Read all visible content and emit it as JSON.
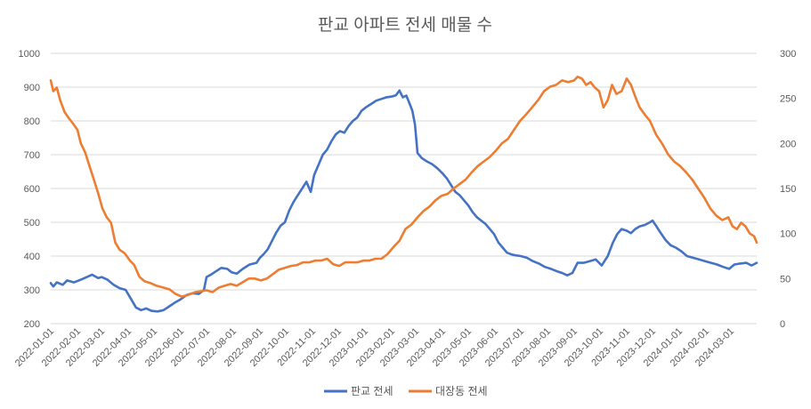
{
  "chart_data": {
    "type": "line",
    "title": "판교 아파트 전세 매물 수",
    "xlabel": "",
    "ylabel": "",
    "y2label": "",
    "ylim": [
      200,
      1000
    ],
    "y2lim": [
      0,
      300
    ],
    "yticks": [
      200,
      300,
      400,
      500,
      600,
      700,
      800,
      900,
      1000
    ],
    "y2ticks": [
      0,
      50,
      100,
      150,
      200,
      250,
      300
    ],
    "x_start": "2022-01-01",
    "x_end": "2024-03-31",
    "xticks": [
      "2022-01-01",
      "2022-02-01",
      "2022-03-01",
      "2022-04-01",
      "2022-05-01",
      "2022-06-01",
      "2022-07-01",
      "2022-08-01",
      "2022-09-01",
      "2022-10-01",
      "2022-11-01",
      "2022-12-01",
      "2023-01-01",
      "2023-02-01",
      "2023-03-01",
      "2023-04-01",
      "2023-05-01",
      "2023-06-01",
      "2023-07-01",
      "2023-08-01",
      "2023-09-01",
      "2023-10-01",
      "2023-11-01",
      "2023-12-01",
      "2024-01-01",
      "2024-02-01",
      "2024-03-01"
    ],
    "grid": true,
    "legend_position": "bottom",
    "series": [
      {
        "name": "판교 전세",
        "axis": "left",
        "color": "#4472C4",
        "points": [
          [
            "2022-01-01",
            320
          ],
          [
            "2022-01-04",
            310
          ],
          [
            "2022-01-08",
            322
          ],
          [
            "2022-01-15",
            315
          ],
          [
            "2022-01-20",
            328
          ],
          [
            "2022-01-28",
            322
          ],
          [
            "2022-02-05",
            330
          ],
          [
            "2022-02-12",
            338
          ],
          [
            "2022-02-18",
            345
          ],
          [
            "2022-02-25",
            335
          ],
          [
            "2022-03-01",
            338
          ],
          [
            "2022-03-08",
            330
          ],
          [
            "2022-03-15",
            315
          ],
          [
            "2022-03-22",
            305
          ],
          [
            "2022-03-29",
            300
          ],
          [
            "2022-04-05",
            270
          ],
          [
            "2022-04-10",
            248
          ],
          [
            "2022-04-16",
            240
          ],
          [
            "2022-04-22",
            245
          ],
          [
            "2022-04-28",
            238
          ],
          [
            "2022-05-05",
            236
          ],
          [
            "2022-05-12",
            240
          ],
          [
            "2022-05-18",
            250
          ],
          [
            "2022-05-25",
            262
          ],
          [
            "2022-06-01",
            272
          ],
          [
            "2022-06-08",
            285
          ],
          [
            "2022-06-15",
            290
          ],
          [
            "2022-06-22",
            288
          ],
          [
            "2022-06-28",
            300
          ],
          [
            "2022-07-01",
            338
          ],
          [
            "2022-07-06",
            345
          ],
          [
            "2022-07-12",
            355
          ],
          [
            "2022-07-18",
            365
          ],
          [
            "2022-07-25",
            362
          ],
          [
            "2022-07-30",
            352
          ],
          [
            "2022-08-05",
            348
          ],
          [
            "2022-08-12",
            362
          ],
          [
            "2022-08-20",
            375
          ],
          [
            "2022-08-28",
            380
          ],
          [
            "2022-09-01",
            395
          ],
          [
            "2022-09-05",
            405
          ],
          [
            "2022-09-10",
            420
          ],
          [
            "2022-09-15",
            445
          ],
          [
            "2022-09-20",
            470
          ],
          [
            "2022-09-25",
            490
          ],
          [
            "2022-09-30",
            500
          ],
          [
            "2022-10-05",
            535
          ],
          [
            "2022-10-10",
            560
          ],
          [
            "2022-10-15",
            580
          ],
          [
            "2022-10-20",
            600
          ],
          [
            "2022-10-25",
            620
          ],
          [
            "2022-10-30",
            590
          ],
          [
            "2022-11-03",
            640
          ],
          [
            "2022-11-08",
            670
          ],
          [
            "2022-11-13",
            700
          ],
          [
            "2022-11-18",
            715
          ],
          [
            "2022-11-23",
            740
          ],
          [
            "2022-11-28",
            760
          ],
          [
            "2022-12-03",
            770
          ],
          [
            "2022-12-08",
            765
          ],
          [
            "2022-12-13",
            785
          ],
          [
            "2022-12-18",
            800
          ],
          [
            "2022-12-23",
            810
          ],
          [
            "2022-12-28",
            830
          ],
          [
            "2023-01-02",
            840
          ],
          [
            "2023-01-08",
            850
          ],
          [
            "2023-01-14",
            860
          ],
          [
            "2023-01-20",
            865
          ],
          [
            "2023-01-26",
            870
          ],
          [
            "2023-02-01",
            872
          ],
          [
            "2023-02-06",
            876
          ],
          [
            "2023-02-10",
            890
          ],
          [
            "2023-02-14",
            870
          ],
          [
            "2023-02-18",
            875
          ],
          [
            "2023-02-22",
            850
          ],
          [
            "2023-02-25",
            830
          ],
          [
            "2023-02-28",
            790
          ],
          [
            "2023-03-03",
            705
          ],
          [
            "2023-03-08",
            690
          ],
          [
            "2023-03-14",
            680
          ],
          [
            "2023-03-20",
            672
          ],
          [
            "2023-03-26",
            660
          ],
          [
            "2023-04-01",
            645
          ],
          [
            "2023-04-06",
            630
          ],
          [
            "2023-04-11",
            610
          ],
          [
            "2023-04-16",
            590
          ],
          [
            "2023-04-21",
            580
          ],
          [
            "2023-04-26",
            565
          ],
          [
            "2023-05-01",
            550
          ],
          [
            "2023-05-06",
            530
          ],
          [
            "2023-05-11",
            515
          ],
          [
            "2023-05-16",
            505
          ],
          [
            "2023-05-21",
            495
          ],
          [
            "2023-05-26",
            480
          ],
          [
            "2023-05-31",
            465
          ],
          [
            "2023-06-05",
            440
          ],
          [
            "2023-06-10",
            425
          ],
          [
            "2023-06-15",
            410
          ],
          [
            "2023-06-20",
            405
          ],
          [
            "2023-06-25",
            402
          ],
          [
            "2023-07-01",
            400
          ],
          [
            "2023-07-08",
            395
          ],
          [
            "2023-07-15",
            385
          ],
          [
            "2023-07-22",
            378
          ],
          [
            "2023-07-29",
            368
          ],
          [
            "2023-08-05",
            362
          ],
          [
            "2023-08-12",
            355
          ],
          [
            "2023-08-18",
            350
          ],
          [
            "2023-08-24",
            343
          ],
          [
            "2023-08-30",
            350
          ],
          [
            "2023-09-05",
            380
          ],
          [
            "2023-09-12",
            380
          ],
          [
            "2023-09-19",
            385
          ],
          [
            "2023-09-26",
            390
          ],
          [
            "2023-10-03",
            372
          ],
          [
            "2023-10-10",
            400
          ],
          [
            "2023-10-16",
            440
          ],
          [
            "2023-10-21",
            465
          ],
          [
            "2023-10-26",
            480
          ],
          [
            "2023-11-01",
            475
          ],
          [
            "2023-11-06",
            468
          ],
          [
            "2023-11-11",
            480
          ],
          [
            "2023-11-16",
            488
          ],
          [
            "2023-11-22",
            492
          ],
          [
            "2023-11-28",
            500
          ],
          [
            "2023-12-01",
            505
          ],
          [
            "2023-12-05",
            490
          ],
          [
            "2023-12-10",
            470
          ],
          [
            "2023-12-16",
            448
          ],
          [
            "2023-12-22",
            432
          ],
          [
            "2023-12-28",
            425
          ],
          [
            "2024-01-03",
            415
          ],
          [
            "2024-01-10",
            400
          ],
          [
            "2024-01-17",
            395
          ],
          [
            "2024-01-24",
            390
          ],
          [
            "2024-01-31",
            385
          ],
          [
            "2024-02-07",
            380
          ],
          [
            "2024-02-14",
            375
          ],
          [
            "2024-02-21",
            368
          ],
          [
            "2024-02-28",
            362
          ],
          [
            "2024-03-05",
            375
          ],
          [
            "2024-03-12",
            378
          ],
          [
            "2024-03-19",
            380
          ],
          [
            "2024-03-25",
            372
          ],
          [
            "2024-03-31",
            380
          ]
        ]
      },
      {
        "name": "대장동 전세",
        "axis": "right",
        "color": "#ED7D31",
        "points": [
          [
            "2022-01-01",
            270
          ],
          [
            "2022-01-04",
            258
          ],
          [
            "2022-01-08",
            262
          ],
          [
            "2022-01-12",
            248
          ],
          [
            "2022-01-17",
            235
          ],
          [
            "2022-01-22",
            228
          ],
          [
            "2022-01-27",
            222
          ],
          [
            "2022-02-01",
            215
          ],
          [
            "2022-02-05",
            200
          ],
          [
            "2022-02-10",
            190
          ],
          [
            "2022-02-15",
            175
          ],
          [
            "2022-02-20",
            160
          ],
          [
            "2022-02-25",
            145
          ],
          [
            "2022-03-02",
            128
          ],
          [
            "2022-03-07",
            118
          ],
          [
            "2022-03-12",
            112
          ],
          [
            "2022-03-17",
            90
          ],
          [
            "2022-03-22",
            82
          ],
          [
            "2022-03-28",
            78
          ],
          [
            "2022-04-03",
            70
          ],
          [
            "2022-04-08",
            65
          ],
          [
            "2022-04-14",
            52
          ],
          [
            "2022-04-20",
            47
          ],
          [
            "2022-04-27",
            45
          ],
          [
            "2022-05-04",
            42
          ],
          [
            "2022-05-12",
            40
          ],
          [
            "2022-05-19",
            38
          ],
          [
            "2022-05-26",
            33
          ],
          [
            "2022-06-02",
            30
          ],
          [
            "2022-06-10",
            32
          ],
          [
            "2022-06-18",
            35
          ],
          [
            "2022-06-25",
            36
          ],
          [
            "2022-07-01",
            37
          ],
          [
            "2022-07-08",
            35
          ],
          [
            "2022-07-15",
            40
          ],
          [
            "2022-07-22",
            42
          ],
          [
            "2022-07-29",
            44
          ],
          [
            "2022-08-05",
            42
          ],
          [
            "2022-08-12",
            46
          ],
          [
            "2022-08-19",
            50
          ],
          [
            "2022-08-26",
            50
          ],
          [
            "2022-09-02",
            48
          ],
          [
            "2022-09-09",
            50
          ],
          [
            "2022-09-16",
            55
          ],
          [
            "2022-09-23",
            60
          ],
          [
            "2022-09-30",
            62
          ],
          [
            "2022-10-07",
            64
          ],
          [
            "2022-10-14",
            65
          ],
          [
            "2022-10-21",
            68
          ],
          [
            "2022-10-28",
            68
          ],
          [
            "2022-11-04",
            70
          ],
          [
            "2022-11-11",
            70
          ],
          [
            "2022-11-18",
            72
          ],
          [
            "2022-11-25",
            66
          ],
          [
            "2022-12-02",
            64
          ],
          [
            "2022-12-09",
            68
          ],
          [
            "2022-12-16",
            68
          ],
          [
            "2022-12-23",
            68
          ],
          [
            "2022-12-30",
            70
          ],
          [
            "2023-01-06",
            70
          ],
          [
            "2023-01-13",
            72
          ],
          [
            "2023-01-20",
            72
          ],
          [
            "2023-01-27",
            77
          ],
          [
            "2023-02-03",
            85
          ],
          [
            "2023-02-10",
            92
          ],
          [
            "2023-02-17",
            105
          ],
          [
            "2023-02-24",
            110
          ],
          [
            "2023-03-03",
            118
          ],
          [
            "2023-03-10",
            125
          ],
          [
            "2023-03-17",
            130
          ],
          [
            "2023-03-24",
            137
          ],
          [
            "2023-03-31",
            142
          ],
          [
            "2023-04-07",
            144
          ],
          [
            "2023-04-14",
            150
          ],
          [
            "2023-04-21",
            155
          ],
          [
            "2023-04-28",
            160
          ],
          [
            "2023-05-05",
            168
          ],
          [
            "2023-05-12",
            175
          ],
          [
            "2023-05-19",
            180
          ],
          [
            "2023-05-26",
            185
          ],
          [
            "2023-06-02",
            192
          ],
          [
            "2023-06-09",
            200
          ],
          [
            "2023-06-16",
            205
          ],
          [
            "2023-06-23",
            215
          ],
          [
            "2023-06-30",
            225
          ],
          [
            "2023-07-07",
            232
          ],
          [
            "2023-07-14",
            240
          ],
          [
            "2023-07-21",
            248
          ],
          [
            "2023-07-28",
            258
          ],
          [
            "2023-08-04",
            263
          ],
          [
            "2023-08-11",
            265
          ],
          [
            "2023-08-18",
            270
          ],
          [
            "2023-08-25",
            268
          ],
          [
            "2023-09-01",
            270
          ],
          [
            "2023-09-05",
            274
          ],
          [
            "2023-09-10",
            272
          ],
          [
            "2023-09-15",
            265
          ],
          [
            "2023-09-20",
            268
          ],
          [
            "2023-09-25",
            262
          ],
          [
            "2023-09-30",
            258
          ],
          [
            "2023-10-05",
            240
          ],
          [
            "2023-10-10",
            248
          ],
          [
            "2023-10-15",
            265
          ],
          [
            "2023-10-20",
            255
          ],
          [
            "2023-10-26",
            258
          ],
          [
            "2023-11-01",
            272
          ],
          [
            "2023-11-06",
            265
          ],
          [
            "2023-11-11",
            252
          ],
          [
            "2023-11-16",
            240
          ],
          [
            "2023-11-22",
            232
          ],
          [
            "2023-11-28",
            225
          ],
          [
            "2023-12-05",
            210
          ],
          [
            "2023-12-12",
            200
          ],
          [
            "2023-12-19",
            188
          ],
          [
            "2023-12-26",
            180
          ],
          [
            "2024-01-02",
            175
          ],
          [
            "2024-01-09",
            168
          ],
          [
            "2024-01-16",
            160
          ],
          [
            "2024-01-23",
            150
          ],
          [
            "2024-01-30",
            140
          ],
          [
            "2024-02-06",
            128
          ],
          [
            "2024-02-13",
            120
          ],
          [
            "2024-02-20",
            115
          ],
          [
            "2024-02-27",
            118
          ],
          [
            "2024-03-03",
            108
          ],
          [
            "2024-03-08",
            105
          ],
          [
            "2024-03-13",
            112
          ],
          [
            "2024-03-18",
            108
          ],
          [
            "2024-03-23",
            100
          ],
          [
            "2024-03-28",
            97
          ],
          [
            "2024-03-31",
            90
          ]
        ]
      }
    ]
  }
}
